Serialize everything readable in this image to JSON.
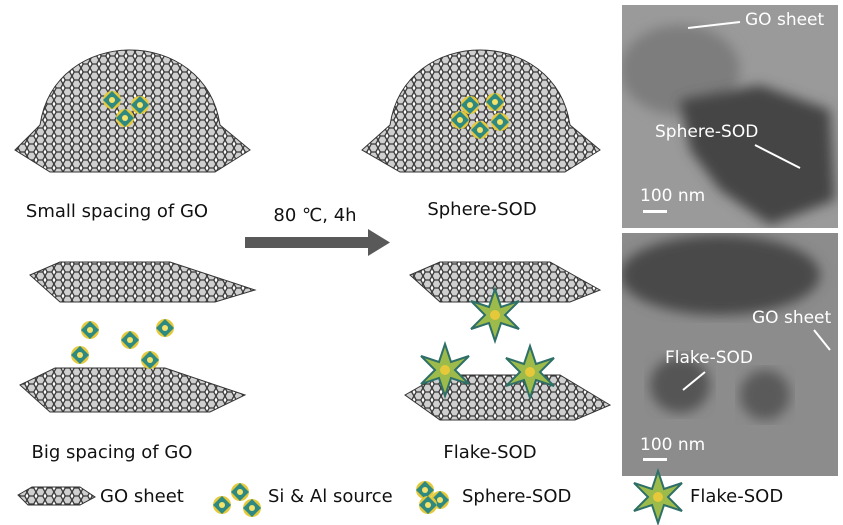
{
  "panels": [
    {
      "label": "Small spacing of GO"
    },
    {
      "label": "Sphere-SOD"
    },
    {
      "label": "Big spacing of GO"
    },
    {
      "label": "Flake-SOD"
    }
  ],
  "arrow": {
    "label": "80 ℃, 4h"
  },
  "micrographs": [
    {
      "annotations": [
        "GO sheet",
        "Sphere-SOD"
      ],
      "scale_bar": "100 nm"
    },
    {
      "annotations": [
        "GO sheet",
        "Flake-SOD"
      ],
      "scale_bar": "100 nm"
    }
  ],
  "legend": [
    {
      "label": "GO sheet"
    },
    {
      "label": "Si & Al source"
    },
    {
      "label": "Sphere-SOD"
    },
    {
      "label": "Flake-SOD"
    }
  ]
}
